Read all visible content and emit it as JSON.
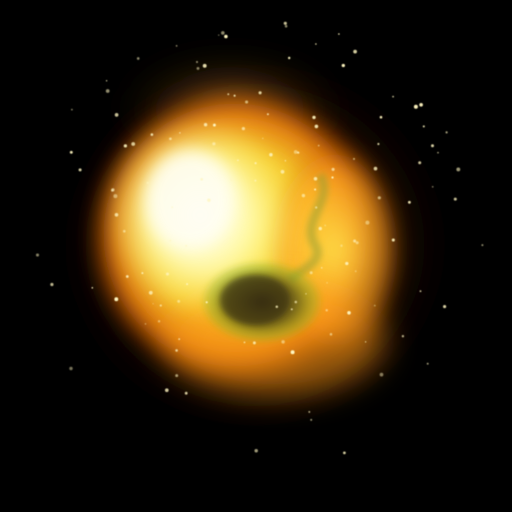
{
  "scene": {
    "subject": "fireball-explosion",
    "background_color": "#000000",
    "palette": {
      "core_white": "#fffde8",
      "core_yellow": "#fff36a",
      "mid_yellow": "#ffd630",
      "outer_orange": "#ff8a10",
      "deep_orange": "#d04a05",
      "smoke_olive": "#5a5a1a",
      "smoke_dark": "#3a3012",
      "smoke_green": "#8fb020",
      "spark": "#fff6c0"
    },
    "spark_count": 140,
    "random_seed": 7
  }
}
